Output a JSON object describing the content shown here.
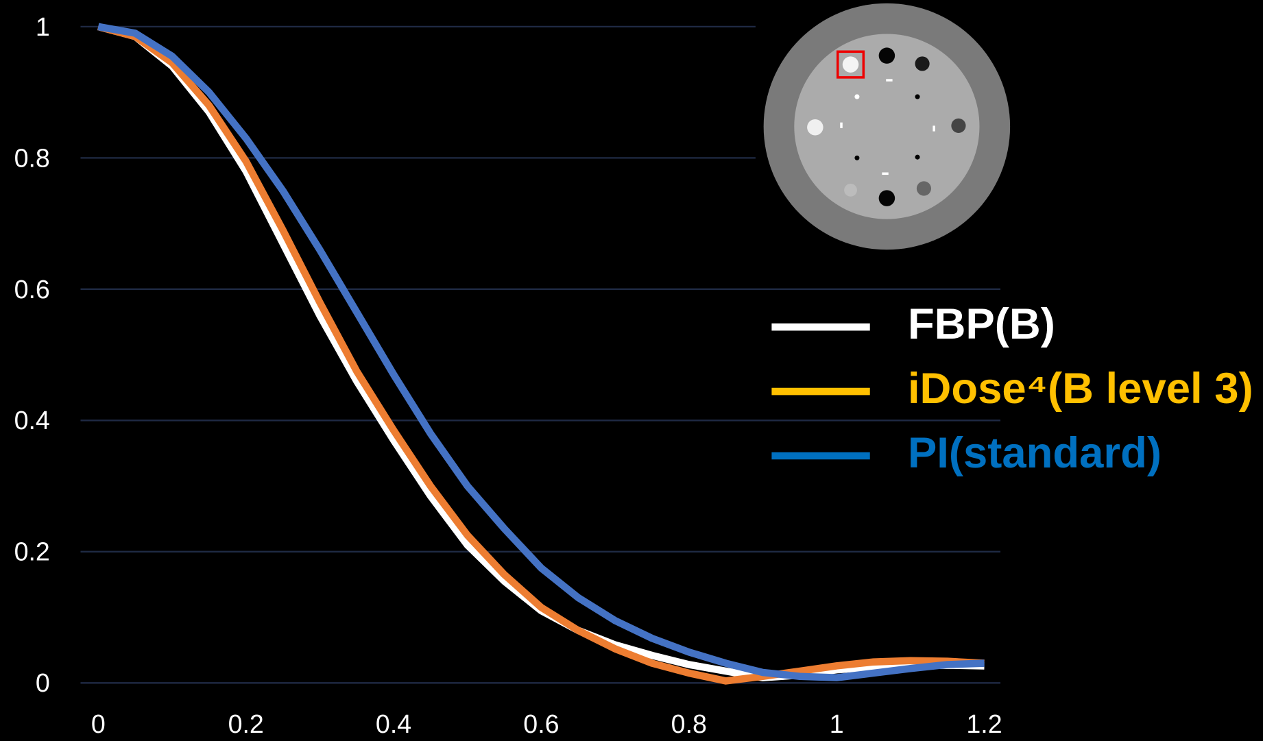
{
  "chart_data": {
    "type": "line",
    "x": [
      0,
      0.05,
      0.1,
      0.15,
      0.2,
      0.25,
      0.3,
      0.35,
      0.4,
      0.45,
      0.5,
      0.55,
      0.6,
      0.65,
      0.7,
      0.75,
      0.8,
      0.85,
      0.9,
      0.95,
      1,
      1.05,
      1.1,
      1.15,
      1.2
    ],
    "series": [
      {
        "name": "FBP(B)",
        "color": "#ffffff",
        "legend_color": "#ffffff",
        "values": [
          1,
          0.985,
          0.94,
          0.87,
          0.78,
          0.67,
          0.56,
          0.46,
          0.37,
          0.285,
          0.21,
          0.155,
          0.11,
          0.08,
          0.058,
          0.042,
          0.028,
          0.018,
          0.008,
          0.012,
          0.02,
          0.024,
          0.026,
          0.027,
          0.026
        ]
      },
      {
        "name": "iDose⁴(B level 3)",
        "color": "#ed7d31",
        "legend_color": "#ffc000",
        "values": [
          1,
          0.985,
          0.945,
          0.88,
          0.795,
          0.69,
          0.58,
          0.475,
          0.385,
          0.3,
          0.225,
          0.165,
          0.115,
          0.08,
          0.052,
          0.03,
          0.015,
          0.003,
          0.01,
          0.018,
          0.026,
          0.032,
          0.034,
          0.033,
          0.03
        ]
      },
      {
        "name": "PI(standard)",
        "color": "#4472c4",
        "legend_color": "#0070c0",
        "values": [
          1,
          0.99,
          0.955,
          0.9,
          0.83,
          0.75,
          0.66,
          0.565,
          0.47,
          0.38,
          0.3,
          0.235,
          0.175,
          0.13,
          0.095,
          0.068,
          0.047,
          0.03,
          0.016,
          0.01,
          0.008,
          0.015,
          0.022,
          0.028,
          0.03
        ]
      }
    ],
    "xlim": [
      0,
      1.2
    ],
    "xticks": [
      0,
      0.2,
      0.4,
      0.6,
      0.8,
      1,
      1.2
    ],
    "ylim": [
      0,
      1
    ],
    "yticks": [
      0,
      0.2,
      0.4,
      0.6,
      0.8,
      1
    ],
    "grid": true,
    "grid_color": "#1f2a44"
  }
}
